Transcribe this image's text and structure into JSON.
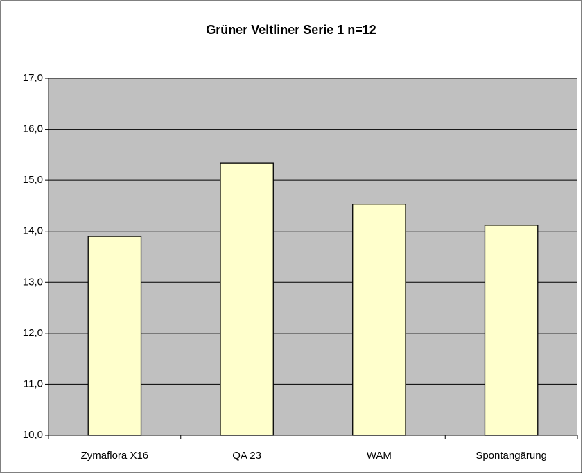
{
  "chart_data": {
    "type": "bar",
    "title": "Grüner Veltliner Serie 1 n=12",
    "categories": [
      "Zymaflora X16",
      "QA 23",
      "WAM",
      "Spontangärung"
    ],
    "values": [
      13.9,
      15.34,
      14.53,
      14.12
    ],
    "color": "#ffffcc",
    "ylim": [
      10,
      17
    ],
    "yticks": [
      {
        "value": 10,
        "label": "10,0"
      },
      {
        "value": 11,
        "label": "11,0"
      },
      {
        "value": 12,
        "label": "12,0"
      },
      {
        "value": 13,
        "label": "13,0"
      },
      {
        "value": 14,
        "label": "14,0"
      },
      {
        "value": 15,
        "label": "15,0"
      },
      {
        "value": 16,
        "label": "16,0"
      },
      {
        "value": 17,
        "label": "17,0"
      }
    ],
    "grid": true
  }
}
